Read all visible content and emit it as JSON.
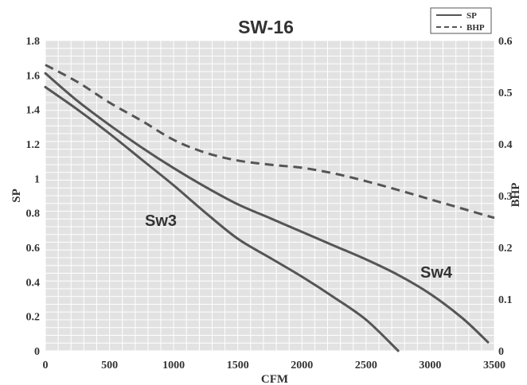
{
  "chart_data": {
    "type": "line",
    "title": "SW-16",
    "xlabel": "CFM",
    "ylabel": "SP",
    "y2label": "BHP",
    "xlim": [
      0,
      3500
    ],
    "ylim": [
      0,
      1.8
    ],
    "y2lim": [
      0,
      0.6
    ],
    "grid": true,
    "legend_position": "top-right",
    "x_ticks": [
      "0",
      "500",
      "1000",
      "1500",
      "2000",
      "2500",
      "3000",
      "3500"
    ],
    "y_ticks": [
      "0",
      "0.2",
      "0.4",
      "0.6",
      "0.8",
      "1",
      "1.2",
      "1.4",
      "1.6",
      "1.8"
    ],
    "y2_ticks": [
      "0",
      "0.1",
      "0.2",
      "0.3",
      "0.4",
      "0.5",
      "0.6"
    ],
    "legend": [
      {
        "name": "SP",
        "style": "solid"
      },
      {
        "name": "BHP",
        "style": "dashed"
      }
    ],
    "series": [
      {
        "name": "Sw3",
        "axis": "SP",
        "style": "solid",
        "points": [
          [
            0,
            1.53
          ],
          [
            250,
            1.4
          ],
          [
            500,
            1.26
          ],
          [
            750,
            1.11
          ],
          [
            1000,
            0.96
          ],
          [
            1250,
            0.8
          ],
          [
            1500,
            0.65
          ],
          [
            1750,
            0.54
          ],
          [
            2000,
            0.43
          ],
          [
            2250,
            0.31
          ],
          [
            2500,
            0.18
          ],
          [
            2750,
            0.0
          ]
        ]
      },
      {
        "name": "Sw4",
        "axis": "SP",
        "style": "solid",
        "points": [
          [
            0,
            1.61
          ],
          [
            250,
            1.45
          ],
          [
            500,
            1.31
          ],
          [
            750,
            1.18
          ],
          [
            1000,
            1.06
          ],
          [
            1250,
            0.95
          ],
          [
            1500,
            0.85
          ],
          [
            1750,
            0.77
          ],
          [
            2000,
            0.69
          ],
          [
            2250,
            0.61
          ],
          [
            2500,
            0.53
          ],
          [
            2750,
            0.44
          ],
          [
            3000,
            0.33
          ],
          [
            3250,
            0.19
          ],
          [
            3450,
            0.05
          ]
        ]
      },
      {
        "name": "BHP",
        "axis": "BHP",
        "style": "dashed",
        "points": [
          [
            0,
            0.553
          ],
          [
            250,
            0.52
          ],
          [
            500,
            0.48
          ],
          [
            750,
            0.445
          ],
          [
            1000,
            0.408
          ],
          [
            1250,
            0.383
          ],
          [
            1500,
            0.368
          ],
          [
            1750,
            0.36
          ],
          [
            2000,
            0.354
          ],
          [
            2250,
            0.343
          ],
          [
            2500,
            0.328
          ],
          [
            2750,
            0.311
          ],
          [
            3000,
            0.293
          ],
          [
            3250,
            0.275
          ],
          [
            3500,
            0.257
          ]
        ]
      }
    ]
  }
}
